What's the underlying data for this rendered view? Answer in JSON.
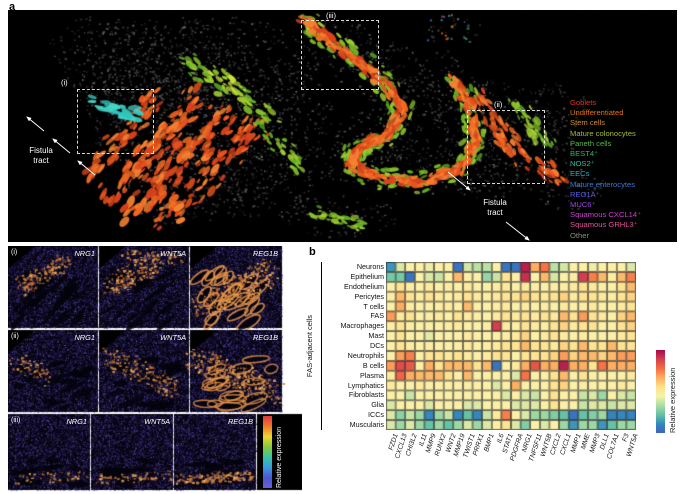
{
  "figure": {
    "panel_a": {
      "label": "a",
      "region_labels": {
        "i": "(i)",
        "ii": "(ii)",
        "iii": "(iii)"
      },
      "fistula_left": {
        "line1": "Fistula",
        "line2": "tract"
      },
      "fistula_right": {
        "line1": "Fistula",
        "line2": "tract"
      },
      "legend": [
        {
          "label": "Goblets",
          "color": "#e4342c"
        },
        {
          "label": "Undifferentiated",
          "color": "#e1730f"
        },
        {
          "label": "Stem cells",
          "color": "#d18f2a"
        },
        {
          "label": "Mature colonocytes",
          "color": "#a3bd31"
        },
        {
          "label": "Paneth cells",
          "color": "#58b944"
        },
        {
          "label": "BEST4⁺",
          "color": "#2eb65e"
        },
        {
          "label": "NOS2⁺",
          "color": "#2db896"
        },
        {
          "label": "EECs",
          "color": "#22b3c6"
        },
        {
          "label": "Mature enterocytes",
          "color": "#3c78d8"
        },
        {
          "label": "REG1A⁺",
          "color": "#5a60e0"
        },
        {
          "label": "MUC6⁺",
          "color": "#9542da"
        },
        {
          "label": "Squamous CXCL14⁺",
          "color": "#cf3ed4"
        },
        {
          "label": "Squamous GRHL3⁺",
          "color": "#e4529e"
        },
        {
          "label": "Other",
          "color": "#8c8c8c"
        }
      ]
    },
    "panel_images": {
      "rows": [
        {
          "region": "(i)",
          "genes": [
            "NRG1",
            "WNT5A",
            "REG1B"
          ]
        },
        {
          "region": "(ii)",
          "genes": [
            "NRG1",
            "WNT5A",
            "REG1B"
          ]
        },
        {
          "region": "(iii)",
          "genes": [
            "NRG1",
            "WNT5A",
            "REG1B"
          ]
        }
      ],
      "colorbar_label": "Relative expression"
    },
    "panel_b": {
      "label": "b",
      "y_axis_group": "FAS-adjacent cells",
      "colorbar_label": "Relative expression"
    }
  },
  "chart_data": {
    "type": "heatmap",
    "title": "",
    "row_group_label": "FAS-adjacent cells",
    "colorbar_label": "Relative expression",
    "colormap": "spectral_blue_low_red_high",
    "rows": [
      "Neurons",
      "Epithelium",
      "Endothelium",
      "Pericytes",
      "T cells",
      "FAS",
      "Macrophages",
      "Mast",
      "DCs",
      "Neutrophils",
      "B cells",
      "Plasma",
      "Lymphatics",
      "Fibroblasts",
      "Glia",
      "ICCs",
      "Muscularis"
    ],
    "columns": [
      "FZD1",
      "CXCL13",
      "CHI3L2",
      "IL11",
      "MMP9",
      "RUNX2",
      "WNT2",
      "MMP19",
      "TWIST1",
      "PRRX1",
      "BMP1",
      "IL6",
      "STAT1",
      "PDGFRA",
      "NRG1",
      "TNFSF11",
      "WNT5B",
      "CXCL2",
      "CXCL1",
      "MMP1",
      "MME",
      "MMP3",
      "DLL1",
      "COL7A1",
      "F3",
      "WNT5A"
    ],
    "value_range": [
      0,
      1
    ],
    "values": [
      [
        0.15,
        0.45,
        0.5,
        0.5,
        0.48,
        0.5,
        0.5,
        0.06,
        0.44,
        0.4,
        0.4,
        0.5,
        0.06,
        0.06,
        0.97,
        0.72,
        0.82,
        0.4,
        0.44,
        0.5,
        0.5,
        0.48,
        0.5,
        0.5,
        0.5,
        0.45
      ],
      [
        0.28,
        0.28,
        0.06,
        0.5,
        0.45,
        0.42,
        0.5,
        0.7,
        0.52,
        0.5,
        0.34,
        0.42,
        0.6,
        0.5,
        0.95,
        0.5,
        0.7,
        0.44,
        0.5,
        0.52,
        0.93,
        0.8,
        0.7,
        0.52,
        0.7,
        0.8
      ],
      [
        0.5,
        0.6,
        0.52,
        0.5,
        0.55,
        0.5,
        0.52,
        0.5,
        0.55,
        0.5,
        0.5,
        0.52,
        0.55,
        0.5,
        0.55,
        0.52,
        0.5,
        0.52,
        0.52,
        0.55,
        0.6,
        0.55,
        0.5,
        0.5,
        0.6,
        0.7
      ],
      [
        0.52,
        0.7,
        0.6,
        0.52,
        0.6,
        0.55,
        0.5,
        0.55,
        0.6,
        0.55,
        0.52,
        0.55,
        0.6,
        0.6,
        0.65,
        0.6,
        0.55,
        0.6,
        0.65,
        0.55,
        0.6,
        0.6,
        0.55,
        0.52,
        0.6,
        0.65
      ],
      [
        0.5,
        0.72,
        0.52,
        0.5,
        0.5,
        0.52,
        0.55,
        0.5,
        0.7,
        0.5,
        0.5,
        0.52,
        0.55,
        0.5,
        0.55,
        0.5,
        0.52,
        0.5,
        0.55,
        0.5,
        0.52,
        0.55,
        0.5,
        0.5,
        0.55,
        0.6
      ],
      [
        0.75,
        0.55,
        0.6,
        0.5,
        0.52,
        0.55,
        0.5,
        0.6,
        0.55,
        0.52,
        0.5,
        0.55,
        0.6,
        0.55,
        0.6,
        0.55,
        0.6,
        0.55,
        0.7,
        0.6,
        0.75,
        0.6,
        0.55,
        0.5,
        0.65,
        0.7
      ],
      [
        0.5,
        0.6,
        0.52,
        0.5,
        0.5,
        0.5,
        0.52,
        0.55,
        0.5,
        0.5,
        0.52,
        0.93,
        0.55,
        0.5,
        0.6,
        0.55,
        0.52,
        0.6,
        0.65,
        0.55,
        0.6,
        0.6,
        0.5,
        0.5,
        0.6,
        0.65
      ],
      [
        0.5,
        0.6,
        0.5,
        0.5,
        0.46,
        0.5,
        0.5,
        0.5,
        0.55,
        0.5,
        0.5,
        0.5,
        0.52,
        0.55,
        0.65,
        0.5,
        0.55,
        0.6,
        0.55,
        0.5,
        0.55,
        0.5,
        0.5,
        0.5,
        0.55,
        0.6
      ],
      [
        0.5,
        0.6,
        0.52,
        0.5,
        0.52,
        0.5,
        0.5,
        0.52,
        0.55,
        0.5,
        0.52,
        0.55,
        0.6,
        0.6,
        0.7,
        0.6,
        0.6,
        0.55,
        0.65,
        0.6,
        0.7,
        0.6,
        0.6,
        0.7,
        0.6,
        0.6
      ],
      [
        0.5,
        0.75,
        0.8,
        0.5,
        0.6,
        0.6,
        0.55,
        0.6,
        0.55,
        0.5,
        0.55,
        0.6,
        0.6,
        0.5,
        0.6,
        0.6,
        0.6,
        0.65,
        0.75,
        0.65,
        0.7,
        0.7,
        0.65,
        0.7,
        0.75,
        0.75
      ],
      [
        0.75,
        0.9,
        0.87,
        0.5,
        0.72,
        0.6,
        0.7,
        0.7,
        0.7,
        0.6,
        0.7,
        0.06,
        0.5,
        0.55,
        0.72,
        0.88,
        0.72,
        0.72,
        0.97,
        0.72,
        0.72,
        0.6,
        0.82,
        0.72,
        0.72,
        0.72
      ],
      [
        0.55,
        0.85,
        0.72,
        0.7,
        0.7,
        0.7,
        0.6,
        0.5,
        0.7,
        0.5,
        0.52,
        0.5,
        0.5,
        0.45,
        0.82,
        0.5,
        0.5,
        0.6,
        0.7,
        0.5,
        0.6,
        0.5,
        0.5,
        0.5,
        0.5,
        0.55
      ],
      [
        0.55,
        0.5,
        0.5,
        0.55,
        0.5,
        0.5,
        0.5,
        0.5,
        0.52,
        0.5,
        0.5,
        0.45,
        0.5,
        0.72,
        0.5,
        0.5,
        0.5,
        0.6,
        0.65,
        0.5,
        0.52,
        0.5,
        0.5,
        0.5,
        0.55,
        0.5
      ],
      [
        0.5,
        0.5,
        0.42,
        0.5,
        0.5,
        0.5,
        0.5,
        0.5,
        0.5,
        0.5,
        0.5,
        0.5,
        0.45,
        0.5,
        0.45,
        0.42,
        0.5,
        0.6,
        0.5,
        0.5,
        0.42,
        0.45,
        0.35,
        0.5,
        0.45,
        0.42
      ],
      [
        0.45,
        0.5,
        0.5,
        0.5,
        0.45,
        0.5,
        0.5,
        0.5,
        0.45,
        0.45,
        0.5,
        0.5,
        0.5,
        0.45,
        0.45,
        0.45,
        0.5,
        0.6,
        0.5,
        0.5,
        0.42,
        0.45,
        0.45,
        0.42,
        0.45,
        0.45
      ],
      [
        0.45,
        0.32,
        0.42,
        0.35,
        0.12,
        0.35,
        0.42,
        0.12,
        0.25,
        0.12,
        0.42,
        0.55,
        0.8,
        0.5,
        0.45,
        0.35,
        0.35,
        0.3,
        0.25,
        0.06,
        0.25,
        0.3,
        0.35,
        0.1,
        0.12,
        0.1
      ],
      [
        0.45,
        0.35,
        0.45,
        0.35,
        0.25,
        0.35,
        0.25,
        0.35,
        0.45,
        0.35,
        0.45,
        0.5,
        0.6,
        0.45,
        0.3,
        0.5,
        0.45,
        0.5,
        0.35,
        0.15,
        0.35,
        0.35,
        0.15,
        0.25,
        0.35,
        0.35
      ]
    ]
  }
}
